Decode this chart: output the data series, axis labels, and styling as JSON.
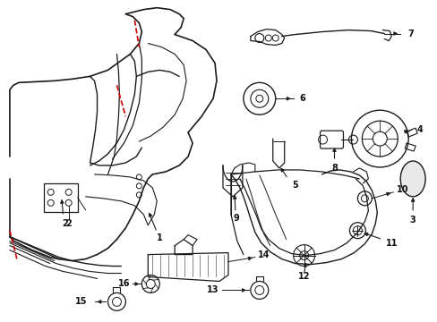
{
  "background_color": "#ffffff",
  "line_color": "#1a1a1a",
  "red_color": "#cc0000",
  "fig_width": 4.89,
  "fig_height": 3.6,
  "dpi": 100,
  "xlim": [
    0,
    489
  ],
  "ylim": [
    0,
    360
  ]
}
